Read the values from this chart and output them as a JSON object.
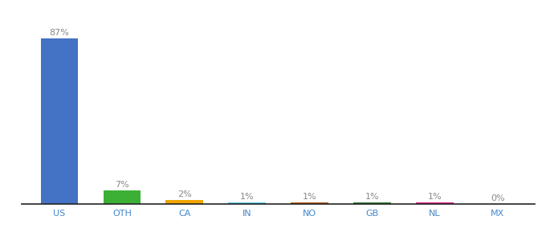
{
  "categories": [
    "US",
    "OTH",
    "CA",
    "IN",
    "NO",
    "GB",
    "NL",
    "MX"
  ],
  "values": [
    87,
    7,
    2,
    1,
    1,
    1,
    1,
    0
  ],
  "labels": [
    "87%",
    "7%",
    "2%",
    "1%",
    "1%",
    "1%",
    "1%",
    "0%"
  ],
  "bar_colors": [
    "#4472c4",
    "#3cb034",
    "#f0a500",
    "#58c8e8",
    "#b85c1a",
    "#2e7d32",
    "#e91e8c",
    "#9e9e9e"
  ],
  "background_color": "#ffffff",
  "ylim": [
    0,
    97
  ],
  "label_fontsize": 8,
  "tick_fontsize": 8,
  "label_color": "#888888",
  "tick_color": "#4488cc"
}
